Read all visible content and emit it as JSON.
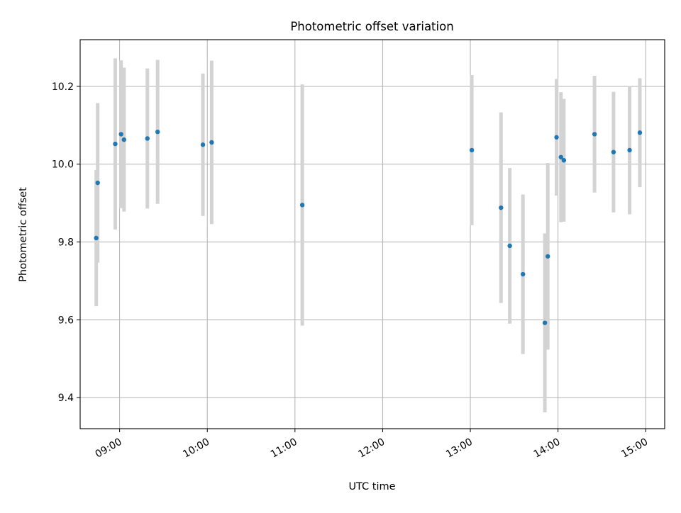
{
  "chart_data": {
    "type": "scatter",
    "title": "Photometric offset variation",
    "xlabel": "UTC time",
    "ylabel": "Photometric offset",
    "x_ticks": [
      "09:00",
      "10:00",
      "11:00",
      "12:00",
      "13:00",
      "14:00",
      "15:00"
    ],
    "y_ticks": [
      "9.4",
      "9.6",
      "9.8",
      "10.0",
      "10.2"
    ],
    "xlim": [
      "08:33",
      "15:13"
    ],
    "ylim": [
      9.32,
      10.32
    ],
    "grid": true,
    "marker_color": "#1f77b4",
    "errorbar_color": "#d3d3d3",
    "points": [
      {
        "x": "08:44",
        "y": 9.81,
        "yerr": 0.175
      },
      {
        "x": "08:45",
        "y": 9.952,
        "yerr": 0.205
      },
      {
        "x": "08:57",
        "y": 10.052,
        "yerr": 0.22
      },
      {
        "x": "09:01",
        "y": 10.077,
        "yerr": 0.19
      },
      {
        "x": "09:03",
        "y": 10.063,
        "yerr": 0.185
      },
      {
        "x": "09:19",
        "y": 10.066,
        "yerr": 0.18
      },
      {
        "x": "09:26",
        "y": 10.083,
        "yerr": 0.185
      },
      {
        "x": "09:57",
        "y": 10.05,
        "yerr": 0.183
      },
      {
        "x": "10:03",
        "y": 10.056,
        "yerr": 0.21
      },
      {
        "x": "11:05",
        "y": 9.895,
        "yerr": 0.31
      },
      {
        "x": "13:01",
        "y": 10.036,
        "yerr": 0.193
      },
      {
        "x": "13:21",
        "y": 9.888,
        "yerr": 0.245
      },
      {
        "x": "13:27",
        "y": 9.79,
        "yerr": 0.2
      },
      {
        "x": "13:36",
        "y": 9.717,
        "yerr": 0.205
      },
      {
        "x": "13:51",
        "y": 9.592,
        "yerr": 0.23
      },
      {
        "x": "13:53",
        "y": 9.763,
        "yerr": 0.24
      },
      {
        "x": "13:59",
        "y": 10.069,
        "yerr": 0.15
      },
      {
        "x": "14:02",
        "y": 10.018,
        "yerr": 0.167
      },
      {
        "x": "14:04",
        "y": 10.01,
        "yerr": 0.158
      },
      {
        "x": "14:25",
        "y": 10.077,
        "yerr": 0.15
      },
      {
        "x": "14:38",
        "y": 10.031,
        "yerr": 0.155
      },
      {
        "x": "14:49",
        "y": 10.036,
        "yerr": 0.165
      },
      {
        "x": "14:56",
        "y": 10.081,
        "yerr": 0.14
      }
    ]
  }
}
